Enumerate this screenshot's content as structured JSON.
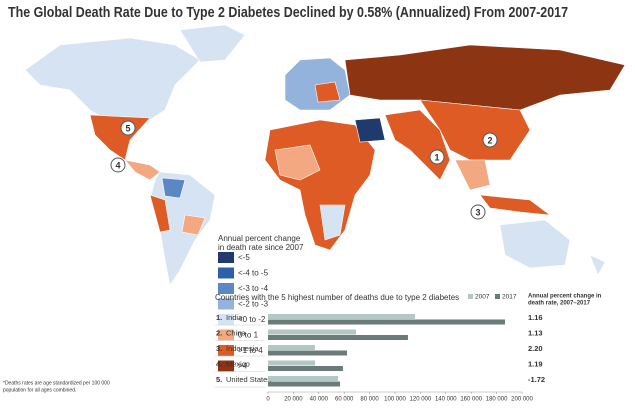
{
  "title": "The Global Death Rate Due to Type 2 Diabetes Declined by 0.58% (Annualized) From 2007-2017",
  "map": {
    "legend_title": [
      "Annual percent change",
      "in death rate since 2007"
    ],
    "legend": [
      {
        "label": "<-5",
        "color": "#1f3b6e"
      },
      {
        "label": "<-4 to -5",
        "color": "#2e5fa8"
      },
      {
        "label": "<-3 to -4",
        "color": "#5b87c5"
      },
      {
        "label": "<-2 to -3",
        "color": "#93b3dd"
      },
      {
        "label": "<0 to -2",
        "color": "#d6e3f3"
      },
      {
        "label": "0 to 1",
        "color": "#f4a882"
      },
      {
        "label": ">1 to 4",
        "color": "#de5b25"
      },
      {
        "label": ">4",
        "color": "#8d3512"
      }
    ],
    "markers": [
      "1",
      "2",
      "3",
      "4",
      "5"
    ]
  },
  "footnote": [
    "*Deaths rates are age standardized per 100 000",
    "population for all ages combined."
  ],
  "chart_data": {
    "type": "bar",
    "orientation": "horizontal",
    "title": "Countries with the 5 highest number of deaths due to type 2 diabetes",
    "ranks": [
      "1.",
      "2.",
      "3.",
      "4.",
      "5."
    ],
    "categories": [
      "India",
      "China",
      "Indonesia",
      "Mexico",
      "United States"
    ],
    "series": [
      {
        "name": "2007",
        "color": "#b3c8c4",
        "values": [
          115700,
          69300,
          37000,
          37000,
          55100
        ]
      },
      {
        "name": "2017",
        "color": "#6b7b79",
        "values": [
          186600,
          110200,
          62200,
          59000,
          56700
        ]
      }
    ],
    "change_title": [
      "Annual percent change in",
      "death rate, 2007–2017"
    ],
    "change_labels": [
      "1.16",
      "1.13",
      "2.20",
      "1.19",
      "-1.72"
    ],
    "xlim": [
      0,
      200000
    ],
    "xticks": [
      0,
      {
        "value": 20000,
        "label": "20 000"
      },
      {
        "value": 40000,
        "label": "40 000"
      },
      {
        "value": 60000,
        "label": "60 000"
      },
      {
        "value": 80000,
        "label": "80 000"
      },
      {
        "value": 100000,
        "label": "100 000"
      },
      {
        "value": 120000,
        "label": "120 000"
      },
      {
        "value": 140000,
        "label": "140 000"
      },
      {
        "value": 160000,
        "label": "160 000"
      },
      {
        "value": 180000,
        "label": "180 000"
      },
      {
        "value": 200000,
        "label": "200 000"
      }
    ]
  }
}
